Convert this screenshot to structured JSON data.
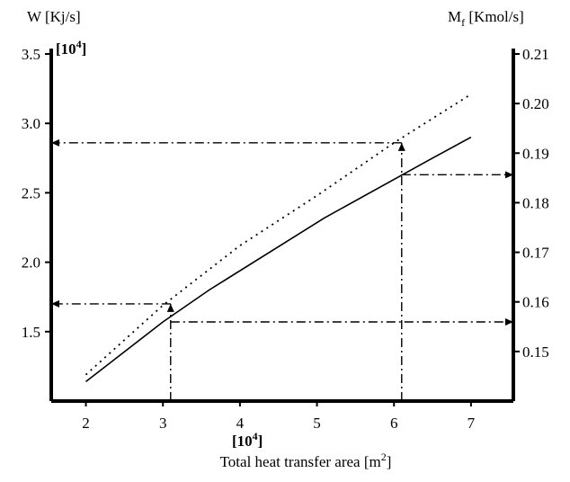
{
  "chart_data": {
    "type": "line",
    "title": "",
    "xlabel": {
      "text": "Total heat transfer area [m",
      "sup": "2",
      "tail": "]"
    },
    "x_multiplier": {
      "text": "[10",
      "sup": "4",
      "tail": "]"
    },
    "xlim": [
      1.55,
      7.55
    ],
    "xticks": [
      2,
      3,
      4,
      5,
      6,
      7
    ],
    "y_left": {
      "label": "W [Kj/s]",
      "multiplier": {
        "text": "[10",
        "sup": "4",
        "tail": "]"
      },
      "lim": [
        1.0,
        3.5
      ],
      "ticks": [
        1.5,
        2.0,
        2.5,
        3.0,
        3.5
      ],
      "tick_labels": [
        "1.5",
        "2.0",
        "2.5",
        "3.0",
        "3.5"
      ]
    },
    "y_right": {
      "label": {
        "text": "M",
        "sub": "f",
        "tail": " [Kmol/s]"
      },
      "lim": [
        0.14,
        0.21
      ],
      "ticks": [
        0.15,
        0.16,
        0.17,
        0.18,
        0.19,
        0.2,
        0.21
      ],
      "tick_labels": [
        "0.15",
        "0.16",
        "0.17",
        "0.18",
        "0.19",
        "0.20",
        "0.21"
      ]
    },
    "series": [
      {
        "style": "solid",
        "axis": "left",
        "x": [
          2.0,
          3.0,
          3.6,
          5.1,
          6.5,
          7.0
        ],
        "y": [
          1.14,
          1.57,
          1.8,
          2.32,
          2.75,
          2.9
        ]
      },
      {
        "style": "dotted",
        "axis": "left",
        "x": [
          2.0,
          3.0,
          4.0,
          5.0,
          6.0,
          7.0
        ],
        "y": [
          1.19,
          1.69,
          2.12,
          2.48,
          2.86,
          3.21
        ]
      }
    ],
    "annotations": [
      {
        "kind": "arrow",
        "from": [
          3.1,
          1.0
        ],
        "to": [
          3.1,
          1.7
        ]
      },
      {
        "kind": "arrow",
        "from": [
          3.1,
          1.7
        ],
        "to": [
          1.55,
          1.7
        ]
      },
      {
        "kind": "arrow",
        "from": [
          3.1,
          1.57
        ],
        "to": [
          7.55,
          1.57
        ]
      },
      {
        "kind": "arrow",
        "from": [
          6.1,
          1.0
        ],
        "to": [
          6.1,
          2.86
        ]
      },
      {
        "kind": "arrow",
        "from": [
          6.1,
          2.86
        ],
        "to": [
          1.55,
          2.86
        ]
      },
      {
        "kind": "arrow",
        "from": [
          6.1,
          2.63
        ],
        "to": [
          7.55,
          2.63
        ]
      }
    ]
  }
}
